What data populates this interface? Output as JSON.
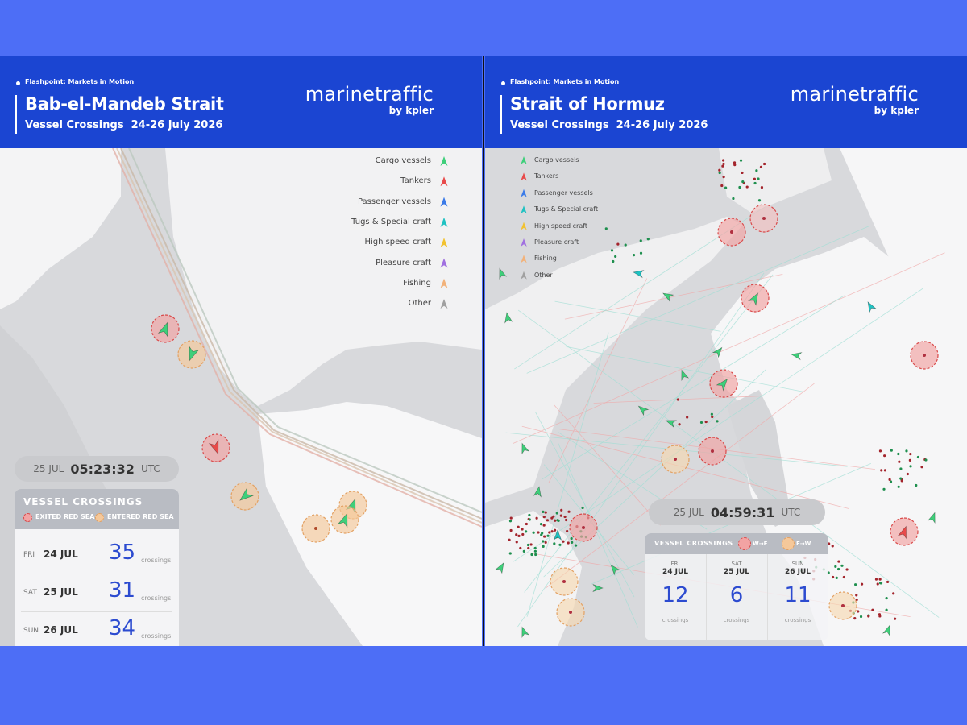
{
  "panels": [
    {
      "kicker": "Flashpoint: Markets in Motion",
      "title": "Bab-el-Mandeb Strait",
      "subtitle": "Vessel Crossings  24-26 July 2026",
      "logo": "marinetraffic",
      "logo_sub": "by kpler",
      "legend": [
        {
          "name": "Cargo vessels",
          "color": "#3ecf7a"
        },
        {
          "name": "Tankers",
          "color": "#e84a4a"
        },
        {
          "name": "Passenger vessels",
          "color": "#3b7be8"
        },
        {
          "name": "Tugs & Special craft",
          "color": "#1fc2c2"
        },
        {
          "name": "High speed craft",
          "color": "#f2c230"
        },
        {
          "name": "Pleasure craft",
          "color": "#a070e0"
        },
        {
          "name": "Fishing",
          "color": "#f2b27a"
        },
        {
          "name": "Other",
          "color": "#a0a0a0"
        }
      ],
      "clock": {
        "date": "25 JUL",
        "time": "05:23:32",
        "zone": "UTC"
      },
      "crossings": {
        "title": "VESSEL CROSSINGS",
        "keys": [
          "EXITED RED SEA",
          "ENTERED RED SEA"
        ],
        "days": [
          {
            "weekday": "FRI",
            "date": "24 JUL",
            "count": 35,
            "unit": "crossings"
          },
          {
            "weekday": "SAT",
            "date": "25 JUL",
            "count": 31,
            "unit": "crossings"
          },
          {
            "weekday": "SUN",
            "date": "26 JUL",
            "count": 34,
            "unit": "crossings"
          }
        ]
      }
    },
    {
      "kicker": "Flashpoint: Markets in Motion",
      "title": "Strait of Hormuz",
      "subtitle": "Vessel Crossings  24-26 July 2026",
      "logo": "marinetraffic",
      "logo_sub": "by kpler",
      "legend": [
        {
          "name": "Cargo vessels",
          "color": "#3ecf7a"
        },
        {
          "name": "Tankers",
          "color": "#e84a4a"
        },
        {
          "name": "Passenger vessels",
          "color": "#3b7be8"
        },
        {
          "name": "Tugs & Special craft",
          "color": "#1fc2c2"
        },
        {
          "name": "High speed craft",
          "color": "#f2c230"
        },
        {
          "name": "Pleasure craft",
          "color": "#a070e0"
        },
        {
          "name": "Fishing",
          "color": "#f2b27a"
        },
        {
          "name": "Other",
          "color": "#a0a0a0"
        }
      ],
      "clock": {
        "date": "25 JUL",
        "time": "04:59:31",
        "zone": "UTC"
      },
      "crossings": {
        "title": "VESSEL CROSSINGS",
        "keys": [
          "W→E",
          "E→W"
        ],
        "days": [
          {
            "weekday": "FRI",
            "date": "24 JUL",
            "count": 12,
            "unit": "crossings"
          },
          {
            "weekday": "SAT",
            "date": "25 JUL",
            "count": 6,
            "unit": "crossings"
          },
          {
            "weekday": "SUN",
            "date": "26 JUL",
            "count": 11,
            "unit": "crossings"
          }
        ]
      }
    }
  ]
}
